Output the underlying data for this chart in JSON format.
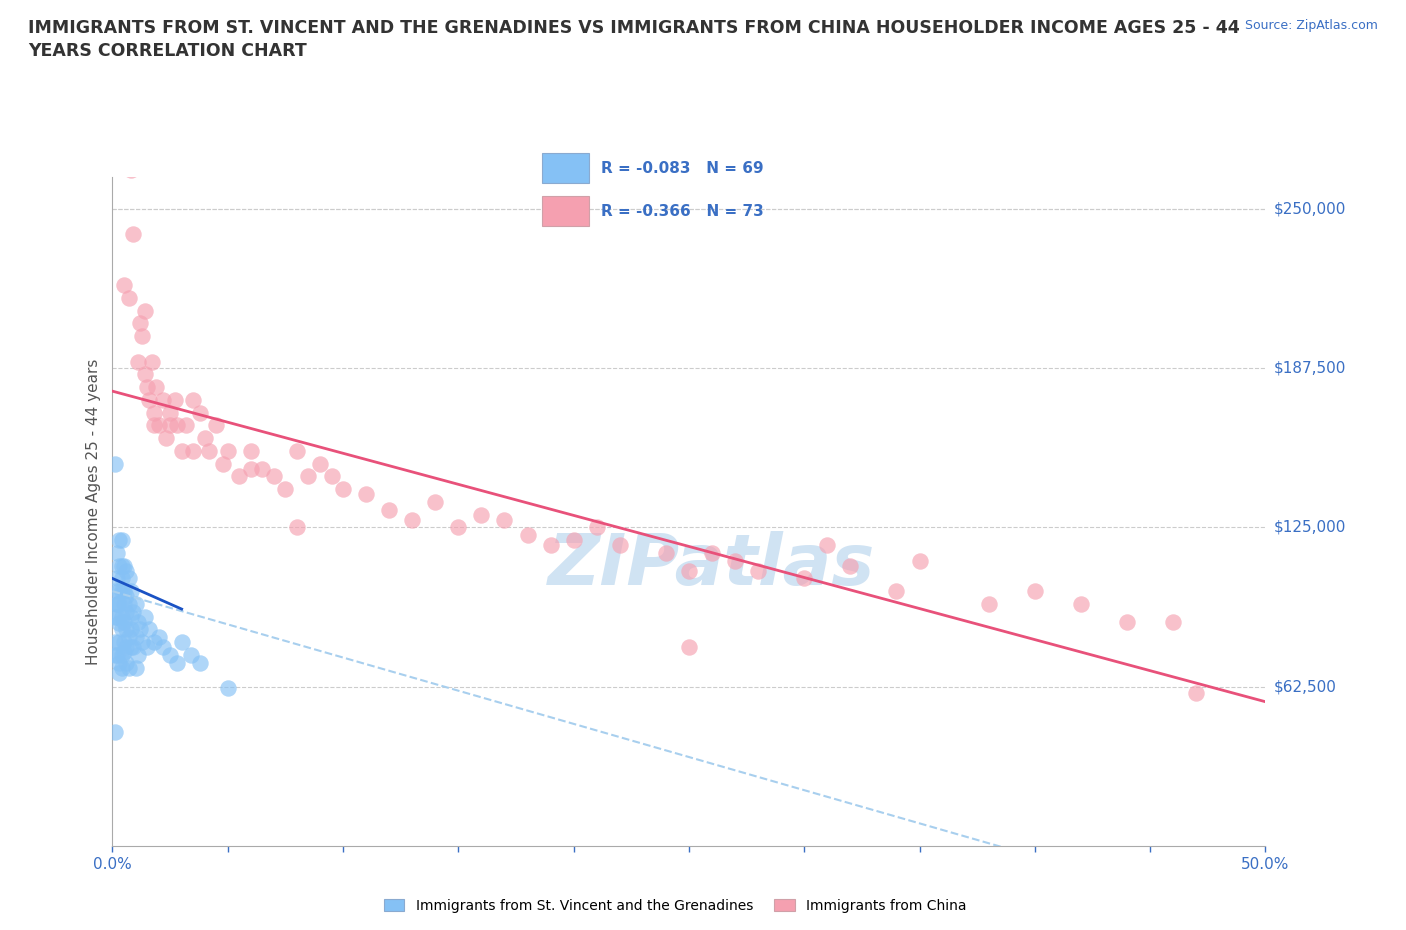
{
  "title": "IMMIGRANTS FROM ST. VINCENT AND THE GRENADINES VS IMMIGRANTS FROM CHINA HOUSEHOLDER INCOME AGES 25 - 44\nYEARS CORRELATION CHART",
  "source_text": "Source: ZipAtlas.com",
  "ylabel": "Householder Income Ages 25 - 44 years",
  "xlim": [
    0.0,
    0.5
  ],
  "ylim": [
    0,
    262500
  ],
  "yticks": [
    0,
    62500,
    125000,
    187500,
    250000
  ],
  "ytick_labels": [
    "",
    "$62,500",
    "$125,000",
    "$187,500",
    "$250,000"
  ],
  "xticks": [
    0.0,
    0.05,
    0.1,
    0.15,
    0.2,
    0.25,
    0.3,
    0.35,
    0.4,
    0.45,
    0.5
  ],
  "xtick_labels": [
    "0.0%",
    "",
    "",
    "",
    "",
    "",
    "",
    "",
    "",
    "",
    "50.0%"
  ],
  "sv_color": "#85C1F5",
  "china_color": "#F5A0B0",
  "sv_trend_color": "#1A52C4",
  "china_trend_color": "#E8517A",
  "sv_trend_dashed_color": "#A8CFEE",
  "legend_r_sv": "-0.083",
  "legend_n_sv": "69",
  "legend_r_china": "-0.366",
  "legend_n_china": "73",
  "watermark_text": "ZIPatlas",
  "watermark_color": "#C5DCF0",
  "grid_color": "#CCCCCC",
  "background_color": "#FFFFFF",
  "sv_points_x": [
    0.001,
    0.001,
    0.001,
    0.001,
    0.002,
    0.002,
    0.002,
    0.002,
    0.002,
    0.003,
    0.003,
    0.003,
    0.003,
    0.003,
    0.003,
    0.004,
    0.004,
    0.004,
    0.004,
    0.004,
    0.004,
    0.004,
    0.005,
    0.005,
    0.005,
    0.005,
    0.005,
    0.005,
    0.006,
    0.006,
    0.006,
    0.006,
    0.006,
    0.006,
    0.007,
    0.007,
    0.007,
    0.007,
    0.008,
    0.008,
    0.008,
    0.008,
    0.009,
    0.009,
    0.01,
    0.01,
    0.01,
    0.011,
    0.011,
    0.012,
    0.013,
    0.014,
    0.015,
    0.016,
    0.018,
    0.02,
    0.022,
    0.025,
    0.028,
    0.03,
    0.034,
    0.038,
    0.001,
    0.002,
    0.003,
    0.003,
    0.004,
    0.05,
    0.001
  ],
  "sv_points_y": [
    90000,
    75000,
    100000,
    80000,
    105000,
    90000,
    75000,
    115000,
    95000,
    100000,
    87500,
    72000,
    110000,
    95000,
    80000,
    105000,
    90000,
    75000,
    120000,
    100000,
    85000,
    70000,
    100000,
    88000,
    76000,
    110000,
    95000,
    80000,
    98000,
    85000,
    72000,
    108000,
    92000,
    78000,
    95000,
    82000,
    70000,
    105000,
    90000,
    78000,
    100000,
    85000,
    92000,
    78000,
    95000,
    82000,
    70000,
    88000,
    75000,
    85000,
    80000,
    90000,
    78000,
    85000,
    80000,
    82000,
    78000,
    75000,
    72000,
    80000,
    75000,
    72000,
    150000,
    95000,
    120000,
    68000,
    110000,
    62000,
    45000
  ],
  "china_points_x": [
    0.005,
    0.007,
    0.009,
    0.011,
    0.012,
    0.013,
    0.014,
    0.015,
    0.016,
    0.017,
    0.018,
    0.019,
    0.02,
    0.022,
    0.023,
    0.025,
    0.027,
    0.028,
    0.03,
    0.032,
    0.035,
    0.038,
    0.04,
    0.042,
    0.045,
    0.048,
    0.05,
    0.055,
    0.06,
    0.065,
    0.07,
    0.075,
    0.08,
    0.085,
    0.09,
    0.095,
    0.1,
    0.11,
    0.12,
    0.13,
    0.14,
    0.15,
    0.16,
    0.17,
    0.18,
    0.19,
    0.2,
    0.21,
    0.22,
    0.24,
    0.25,
    0.26,
    0.27,
    0.28,
    0.3,
    0.31,
    0.32,
    0.34,
    0.35,
    0.38,
    0.4,
    0.42,
    0.44,
    0.46,
    0.008,
    0.014,
    0.018,
    0.025,
    0.035,
    0.06,
    0.08,
    0.25,
    0.47
  ],
  "china_points_y": [
    220000,
    215000,
    240000,
    190000,
    205000,
    200000,
    185000,
    180000,
    175000,
    190000,
    170000,
    180000,
    165000,
    175000,
    160000,
    170000,
    175000,
    165000,
    155000,
    165000,
    175000,
    170000,
    160000,
    155000,
    165000,
    150000,
    155000,
    145000,
    155000,
    148000,
    145000,
    140000,
    155000,
    145000,
    150000,
    145000,
    140000,
    138000,
    132000,
    128000,
    135000,
    125000,
    130000,
    128000,
    122000,
    118000,
    120000,
    125000,
    118000,
    115000,
    108000,
    115000,
    112000,
    108000,
    105000,
    118000,
    110000,
    100000,
    112000,
    95000,
    100000,
    95000,
    88000,
    88000,
    265000,
    210000,
    165000,
    165000,
    155000,
    148000,
    125000,
    78000,
    60000
  ]
}
